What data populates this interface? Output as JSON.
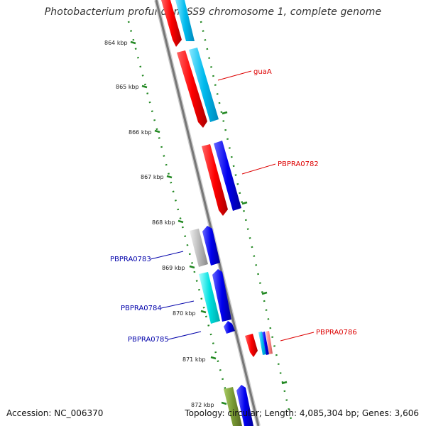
{
  "title": "Photobacterium profundum SS9 chromosome 1, complete genome",
  "ticks": [
    {
      "label": "864 kbp"
    },
    {
      "label": "865 kbp"
    },
    {
      "label": "866 kbp"
    },
    {
      "label": "867 kbp"
    },
    {
      "label": "868 kbp"
    },
    {
      "label": "869 kbp"
    },
    {
      "label": "870 kbp"
    },
    {
      "label": "871 kbp"
    },
    {
      "label": "872 kbp"
    }
  ],
  "gene_labels": [
    {
      "name": "guaA",
      "color": "#dd0000"
    },
    {
      "name": "PBPRA0782",
      "color": "#dd0000"
    },
    {
      "name": "PBPRA0783",
      "color": "#0000aa"
    },
    {
      "name": "PBPRA0784",
      "color": "#0000aa"
    },
    {
      "name": "PBPRA0785",
      "color": "#0000aa"
    },
    {
      "name": "PBPRA0786",
      "color": "#dd0000"
    }
  ],
  "colors": {
    "cds_forward": "#ff0000",
    "cds_reverse": "#0000ee",
    "rna_forward": "#00bbee",
    "rna_reverse": "#00dddd",
    "pseudo": "#bbbbbb",
    "other": "#779933",
    "backbone": "#888888",
    "tick_marks": "#228822"
  },
  "footer": {
    "accession": "Accession: NC_006370",
    "summary": "Topology: circular; Length: 4,085,304 bp; Genes: 3,606"
  }
}
